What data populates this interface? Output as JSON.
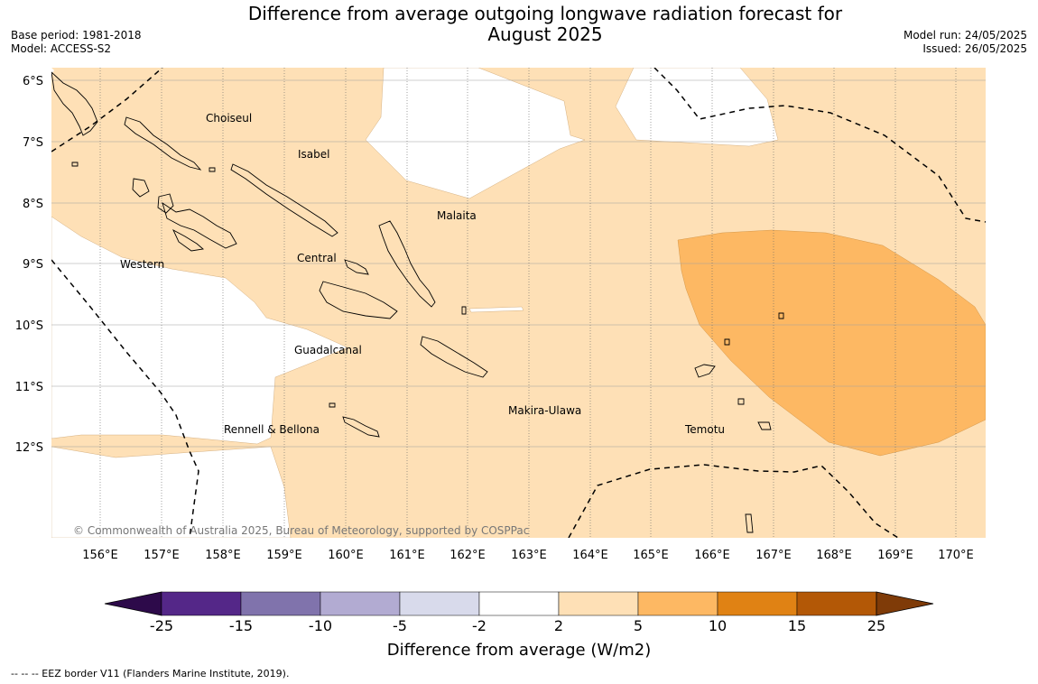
{
  "title_line1": "Difference from average outgoing longwave radiation forecast for",
  "title_line2": "August 2025",
  "base_period": "Base period: 1981-2018",
  "model": "Model: ACCESS-S2",
  "model_run": "Model run: 24/05/2025",
  "issued": "Issued: 26/05/2025",
  "copyright": "© Commonwealth of Australia 2025, Bureau of Meteorology, supported by COSPPac",
  "footer": "--  --  -- EEZ border V11 (Flanders Marine Institute, 2019).",
  "lon_ticks": [
    "156°E",
    "157°E",
    "158°E",
    "159°E",
    "160°E",
    "161°E",
    "162°E",
    "163°E",
    "164°E",
    "165°E",
    "166°E",
    "167°E",
    "168°E",
    "169°E",
    "170°E"
  ],
  "lat_ticks": [
    "6°S",
    "7°S",
    "8°S",
    "9°S",
    "10°S",
    "11°S",
    "12°S"
  ],
  "regions": {
    "choiseul": "Choiseul",
    "isabel": "Isabel",
    "malaita": "Malaita",
    "western": "Western",
    "central": "Central",
    "guadalcanal": "Guadalcanal",
    "makira": "Makira-Ulawa",
    "temotu": "Temotu",
    "rennell": "Rennell & Bellona"
  },
  "colorbar": {
    "title": "Difference from average (W/m2)",
    "ticks": [
      "-25",
      "-15",
      "-10",
      "-5",
      "-2",
      "2",
      "5",
      "10",
      "15",
      "25"
    ],
    "colors": [
      "#2d0a4a",
      "#542788",
      "#8073ac",
      "#b2abd2",
      "#d8daeb",
      "#ffffff",
      "#fee0b6",
      "#fdb863",
      "#e08214",
      "#b35806",
      "#7f3b08"
    ]
  }
}
